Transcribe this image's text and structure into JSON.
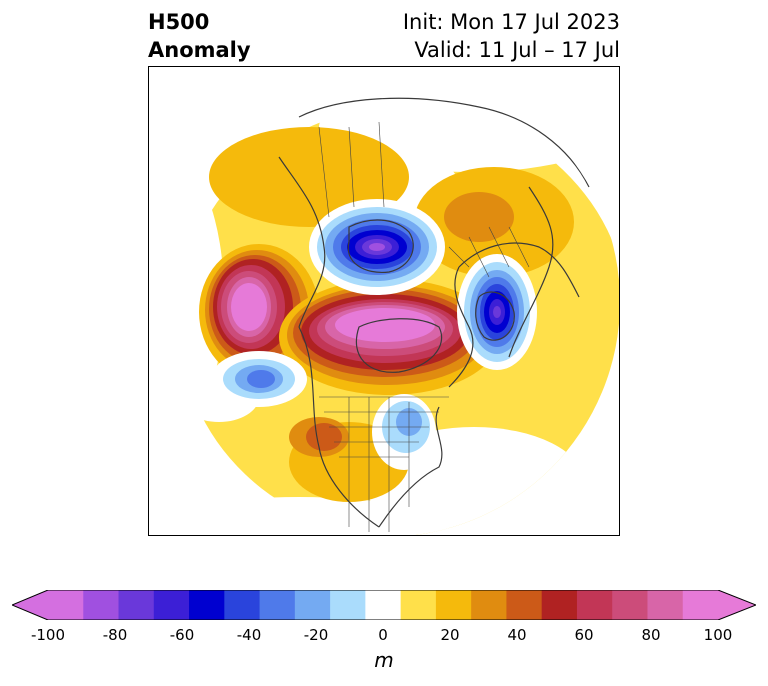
{
  "title": {
    "field_line1": "H500",
    "field_line2": "Anomaly",
    "init_line": "Init: Mon 17 Jul 2023",
    "valid_line": "Valid: 11 Jul – 17 Jul"
  },
  "colorbar": {
    "unit": "m",
    "min": -100,
    "max": 100,
    "tick_labels": [
      "-100",
      "-80",
      "-60",
      "-40",
      "-20",
      "0",
      "20",
      "40",
      "60",
      "80",
      "100"
    ],
    "colors": [
      "#d46fe0",
      "#a050e0",
      "#6a38da",
      "#3c1fd6",
      "#0000d0",
      "#2a44dc",
      "#4f7aea",
      "#74aaf2",
      "#aadcfc",
      "#ffffff",
      "#ffe04a",
      "#f5ba0c",
      "#e08c10",
      "#cc5a18",
      "#b02222",
      "#c23656",
      "#cc4c7a",
      "#d865a8",
      "#e67ad8"
    ],
    "extend": "both"
  },
  "map": {
    "projection": "north-polar-stereographic",
    "features": [
      "coastlines",
      "country-borders",
      "state-province-borders"
    ],
    "anomalies": [
      {
        "region": "Siberia / Arctic Ocean",
        "sign": "positive",
        "peak_m": 100
      },
      {
        "region": "Alaska / Bering Sea",
        "sign": "positive",
        "peak_m": 100
      },
      {
        "region": "Hudson Bay",
        "sign": "negative",
        "peak_m": -90
      },
      {
        "region": "Northern Europe / Scandinavia",
        "sign": "negative",
        "peak_m": -90
      },
      {
        "region": "North Pacific",
        "sign": "negative",
        "peak_m": -40
      },
      {
        "region": "Southwestern United States",
        "sign": "positive",
        "peak_m": 50
      },
      {
        "region": "Eastern North America",
        "sign": "negative",
        "peak_m": -30
      }
    ]
  }
}
